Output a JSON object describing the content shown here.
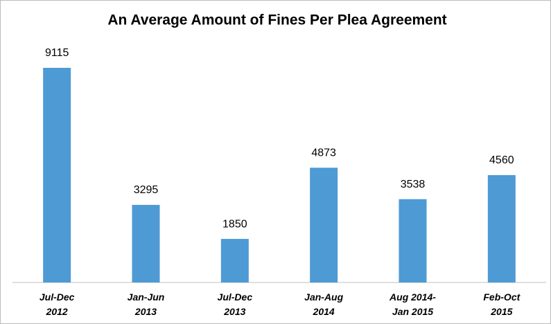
{
  "chart_data": {
    "type": "bar",
    "title": "An Average Amount of Fines Per Plea Agreement",
    "categories": [
      "Jul-Dec\n2012",
      "Jan-Jun\n2013",
      "Jul-Dec\n2013",
      "Jan-Aug\n2014",
      "Aug 2014-\nJan 2015",
      "Feb-Oct\n2015"
    ],
    "values": [
      9115,
      3295,
      1850,
      4873,
      3538,
      4560
    ],
    "color": "#4e9ad4"
  }
}
